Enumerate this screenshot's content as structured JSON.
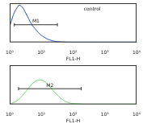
{
  "chart_data": [
    {
      "type": "line",
      "x_label": "FL1-H",
      "log": "x",
      "grid": false,
      "tick_labels": "x",
      "color": "#2a4fc0",
      "x": [
        1,
        1.3,
        1.6,
        2,
        2.5,
        3.2,
        4,
        5,
        6.3,
        8,
        10,
        13,
        16,
        20,
        25,
        32,
        40,
        50,
        63,
        100,
        1000,
        10000
      ],
      "values": [
        40,
        70,
        85,
        95,
        90,
        75,
        60,
        45,
        35,
        25,
        18,
        12,
        8,
        5,
        3,
        2,
        1,
        1,
        0,
        0,
        0,
        0
      ],
      "xlim": [
        1,
        10000
      ],
      "xticks": [
        {
          "value": 1,
          "label": "10⁰"
        },
        {
          "value": 10,
          "label": "10¹"
        },
        {
          "value": 100,
          "label": "10²"
        },
        {
          "value": 1000,
          "label": "10³"
        },
        {
          "value": 10000,
          "label": "10⁴"
        }
      ],
      "ylim": [
        0,
        100
      ],
      "annotations": [
        {
          "text": "control",
          "x": 400,
          "y": 78
        },
        {
          "text": "M1",
          "x": [
            1.4,
            32
          ],
          "y": 45
        }
      ]
    },
    {
      "type": "line",
      "x_label": "FL1-H",
      "log": "x",
      "grid": false,
      "tick_labels": "x",
      "color": "#6fdc6f",
      "x": [
        1,
        1.3,
        1.6,
        2,
        2.5,
        3.2,
        4,
        5,
        6.3,
        8,
        10,
        13,
        16,
        20,
        25,
        32,
        40,
        50,
        63,
        80,
        100,
        160,
        250,
        1000,
        10000
      ],
      "values": [
        2,
        4,
        8,
        14,
        22,
        32,
        42,
        52,
        58,
        62,
        62,
        58,
        50,
        42,
        32,
        24,
        16,
        10,
        6,
        3,
        2,
        1,
        0,
        0,
        0
      ],
      "xlim": [
        1,
        10000
      ],
      "xticks": [
        {
          "value": 1,
          "label": "10⁰"
        },
        {
          "value": 10,
          "label": "10¹"
        },
        {
          "value": 100,
          "label": "10²"
        },
        {
          "value": 1000,
          "label": "10³"
        },
        {
          "value": 10000,
          "label": "10⁴"
        }
      ],
      "ylim": [
        0,
        100
      ],
      "annotations": [
        {
          "text": "M2",
          "x": [
            1.9,
            180
          ],
          "y": 40
        }
      ]
    }
  ]
}
